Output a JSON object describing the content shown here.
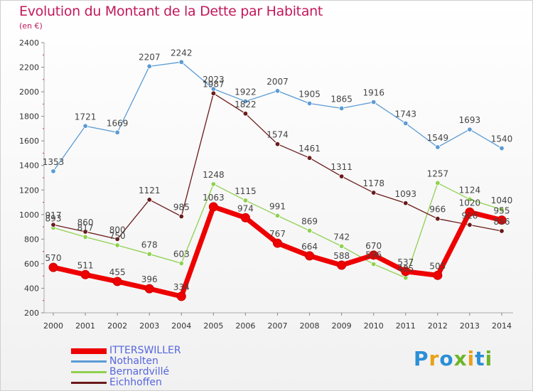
{
  "header": {
    "title": "Evolution du Montant de la Dette par Habitant",
    "subtitle": "(en €)"
  },
  "brand": {
    "text": "Proxiti"
  },
  "chart_data": {
    "type": "line",
    "title": "Evolution du Montant de la Dette par Habitant",
    "subtitle": "(en €)",
    "xlabel": "",
    "ylabel": "",
    "ylim": [
      200,
      2400
    ],
    "yticks": [
      200,
      400,
      600,
      800,
      1000,
      1200,
      1400,
      1600,
      1800,
      2000,
      2200,
      2400
    ],
    "grid": false,
    "legend_position": "bottom-left",
    "x": [
      "2000",
      "2001",
      "2002",
      "2003",
      "2004",
      "2005",
      "2006",
      "2007",
      "2008",
      "2009",
      "2010",
      "2011",
      "2012",
      "2013",
      "2014"
    ],
    "series": [
      {
        "name": "ITTERSWILLER",
        "color": "#ee0000",
        "values": [
          570,
          511,
          455,
          396,
          334,
          1063,
          974,
          767,
          664,
          588,
          670,
          537,
          505,
          1020,
          955
        ],
        "labels": [
          "570",
          "511",
          "455",
          "396",
          "334",
          "1063",
          "974",
          "767",
          "664",
          "588",
          "670",
          "537",
          "505",
          "1020",
          "955"
        ]
      },
      {
        "name": "Nothalten",
        "color": "#5b9bd5",
        "values": [
          1353,
          1721,
          1669,
          2207,
          2242,
          2023,
          1922,
          2007,
          1905,
          1865,
          1916,
          1743,
          1549,
          1693,
          1540
        ],
        "labels": [
          "1353",
          "1721",
          "1669",
          "2207",
          "2242",
          "2023",
          "1922",
          "2007",
          "1905",
          "1865",
          "1916",
          "1743",
          "1549",
          "1693",
          "1540"
        ]
      },
      {
        "name": "Bernardvillé",
        "color": "#8fd14f",
        "values": [
          893,
          817,
          750,
          678,
          603,
          1248,
          1115,
          991,
          869,
          742,
          596,
          485,
          1257,
          1124,
          1040
        ],
        "labels": [
          "893",
          "817",
          "750",
          "678",
          "603",
          "1248",
          "1115",
          "991",
          "869",
          "742",
          "596",
          "485",
          "1257",
          "1124",
          "1040"
        ]
      },
      {
        "name": "Eichhoffen",
        "color": "#6b1a1a",
        "values": [
          917,
          860,
          800,
          1121,
          985,
          1987,
          1822,
          1574,
          1461,
          1311,
          1178,
          1093,
          966,
          916,
          866
        ],
        "labels": [
          "917",
          "860",
          "800",
          "1121",
          "985",
          "1987",
          "1822",
          "1574",
          "1461",
          "1311",
          "1178",
          "1093",
          "966",
          "916",
          "866"
        ]
      }
    ]
  }
}
